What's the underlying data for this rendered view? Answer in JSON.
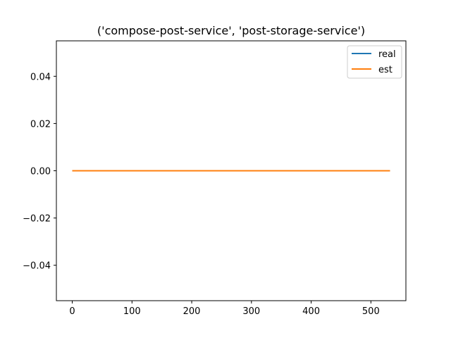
{
  "chart_data": {
    "type": "line",
    "title": "('compose-post-service', 'post-storage-service')",
    "xlabel": "",
    "ylabel": "",
    "xlim": [
      -26.6,
      558.6
    ],
    "ylim": [
      -0.055,
      0.055
    ],
    "xticks": [
      0,
      100,
      200,
      300,
      400,
      500
    ],
    "yticks": [
      -0.04,
      -0.02,
      0.0,
      0.02,
      0.04
    ],
    "xtick_labels": [
      "0",
      "100",
      "200",
      "300",
      "400",
      "500"
    ],
    "ytick_labels": [
      "−0.04",
      "−0.02",
      "0.00",
      "0.02",
      "0.04"
    ],
    "grid": false,
    "legend_position": "top-right",
    "series": [
      {
        "name": "real",
        "color": "#1f77b4",
        "x": [
          0,
          532
        ],
        "y": [
          0,
          0
        ]
      },
      {
        "name": "est",
        "color": "#ff7f0e",
        "x": [
          0,
          532
        ],
        "y": [
          0,
          0
        ]
      }
    ]
  }
}
